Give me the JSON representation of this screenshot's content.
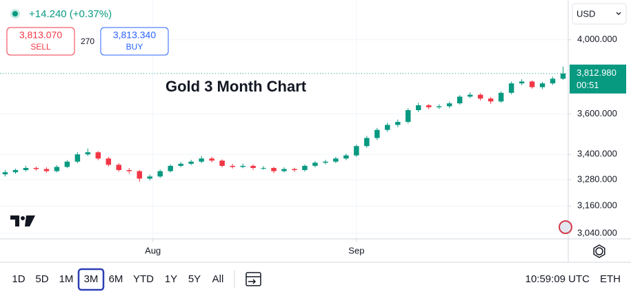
{
  "header": {
    "change": "+14.240 (+0.37%)",
    "sell": {
      "price": "3,813.070",
      "label": "SELL"
    },
    "spread": "270",
    "buy": {
      "price": "3,813.340",
      "label": "BUY"
    },
    "currency": "USD"
  },
  "chart_data": {
    "type": "candlestick",
    "title": "Gold 3 Month Chart",
    "log_scale": true,
    "grid": true,
    "up_color": "#089981",
    "down_color": "#f23645",
    "open": [
      3305,
      3315,
      3325,
      3335,
      3330,
      3320,
      3340,
      3365,
      3400,
      3410,
      3380,
      3350,
      3325,
      3320,
      3285,
      3295,
      3320,
      3345,
      3355,
      3365,
      3380,
      3370,
      3345,
      3340,
      3345,
      3335,
      3335,
      3320,
      3330,
      3325,
      3345,
      3360,
      3365,
      3380,
      3395,
      3440,
      3480,
      3520,
      3545,
      3560,
      3620,
      3645,
      3635,
      3640,
      3655,
      3690,
      3700,
      3680,
      3665,
      3710,
      3760,
      3770,
      3740,
      3760,
      3785
    ],
    "high": [
      3325,
      3332,
      3345,
      3342,
      3338,
      3348,
      3372,
      3410,
      3428,
      3416,
      3388,
      3358,
      3334,
      3326,
      3304,
      3328,
      3352,
      3364,
      3374,
      3392,
      3388,
      3376,
      3354,
      3356,
      3352,
      3344,
      3340,
      3338,
      3336,
      3352,
      3368,
      3374,
      3388,
      3404,
      3448,
      3490,
      3530,
      3556,
      3572,
      3630,
      3658,
      3652,
      3650,
      3664,
      3698,
      3712,
      3708,
      3688,
      3718,
      3770,
      3782,
      3776,
      3768,
      3796,
      3850
    ],
    "low": [
      3295,
      3308,
      3318,
      3322,
      3312,
      3314,
      3334,
      3358,
      3392,
      3372,
      3342,
      3318,
      3308,
      3270,
      3276,
      3288,
      3314,
      3338,
      3348,
      3358,
      3362,
      3338,
      3332,
      3334,
      3326,
      3326,
      3310,
      3314,
      3316,
      3318,
      3338,
      3352,
      3358,
      3372,
      3388,
      3432,
      3470,
      3510,
      3534,
      3552,
      3610,
      3624,
      3626,
      3630,
      3648,
      3682,
      3670,
      3652,
      3658,
      3702,
      3750,
      3732,
      3730,
      3752,
      3778
    ],
    "close": [
      3315,
      3325,
      3335,
      3330,
      3320,
      3340,
      3365,
      3400,
      3410,
      3380,
      3350,
      3325,
      3320,
      3285,
      3295,
      3320,
      3345,
      3355,
      3365,
      3380,
      3370,
      3345,
      3340,
      3345,
      3335,
      3335,
      3320,
      3330,
      3325,
      3345,
      3360,
      3365,
      3380,
      3395,
      3440,
      3480,
      3520,
      3545,
      3560,
      3620,
      3645,
      3635,
      3640,
      3655,
      3690,
      3700,
      3680,
      3665,
      3710,
      3760,
      3770,
      3740,
      3760,
      3785,
      3813
    ],
    "xlim": [
      0,
      55
    ],
    "xticks": [
      {
        "value": 14.8,
        "label": "Aug"
      },
      {
        "value": 34.5,
        "label": "Sep"
      }
    ],
    "ylim": [
      3016,
      4232
    ],
    "yticks": [
      {
        "value": 3040,
        "label": "3,040.000"
      },
      {
        "value": 3160,
        "label": "3,160.000"
      },
      {
        "value": 3280,
        "label": "3,280.000"
      },
      {
        "value": 3400,
        "label": "3,400.000"
      },
      {
        "value": 3600,
        "label": "3,600.000"
      },
      {
        "value": 4000,
        "label": "4,000.000"
      }
    ],
    "current_price": {
      "value": 3812.98,
      "label": "3,812.980"
    },
    "countdown": "00:51"
  },
  "toolbar": {
    "ranges": [
      "1D",
      "5D",
      "1M",
      "3M",
      "6M",
      "YTD",
      "1Y",
      "5Y",
      "All"
    ],
    "selected_range_index": 3,
    "time": "10:59:09 UTC",
    "session": "ETH"
  }
}
